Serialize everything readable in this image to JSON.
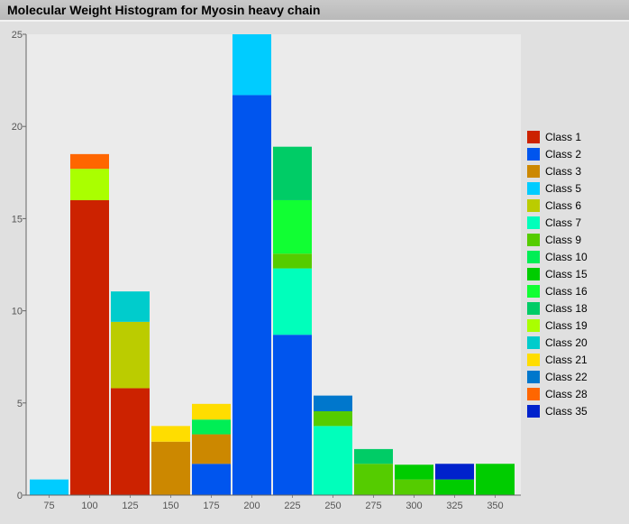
{
  "title": "Molecular Weight Histogram for Myosin heavy chain",
  "chart_data": {
    "type": "bar",
    "stacked": true,
    "categories": [
      "75",
      "100",
      "125",
      "150",
      "175",
      "200",
      "225",
      "250",
      "275",
      "300",
      "325",
      "350"
    ],
    "ylim": [
      0,
      25
    ],
    "yticks": [
      "0",
      "5",
      "10",
      "15",
      "20",
      "25"
    ],
    "grid": false,
    "legend_position": "right",
    "series": [
      {
        "name": "Class 1",
        "color": "#cc2200",
        "values": [
          0,
          16,
          5.8,
          0,
          0,
          0,
          0,
          0,
          0,
          0,
          0,
          0
        ]
      },
      {
        "name": "Class 2",
        "color": "#0055ee",
        "values": [
          0,
          0,
          0,
          0,
          1.7,
          21.7,
          8.7,
          0,
          0,
          0,
          0,
          0
        ]
      },
      {
        "name": "Class 3",
        "color": "#cc8800",
        "values": [
          0,
          0,
          0,
          2.9,
          1.6,
          0,
          0,
          0,
          0,
          0,
          0,
          0
        ]
      },
      {
        "name": "Class 5",
        "color": "#00ccff",
        "values": [
          0.85,
          0,
          0,
          0,
          0,
          3.3,
          0,
          0,
          0,
          0,
          0,
          0
        ]
      },
      {
        "name": "Class 6",
        "color": "#bbcc00",
        "values": [
          0,
          0,
          3.6,
          0,
          0,
          0,
          0,
          0,
          0,
          0,
          0,
          0
        ]
      },
      {
        "name": "Class 7",
        "color": "#00ffbb",
        "values": [
          0,
          0,
          0,
          0,
          0,
          0,
          3.6,
          3.75,
          0,
          0,
          0,
          0
        ]
      },
      {
        "name": "Class 9",
        "color": "#55cc00",
        "values": [
          0,
          0,
          0,
          0,
          0,
          0,
          0.8,
          0.8,
          1.7,
          0.85,
          0,
          0
        ]
      },
      {
        "name": "Class 10",
        "color": "#00ee55",
        "values": [
          0,
          0,
          0,
          0,
          0.8,
          0,
          0,
          0,
          0,
          0,
          0,
          0
        ]
      },
      {
        "name": "Class 15",
        "color": "#00cc00",
        "values": [
          0,
          0,
          0,
          0,
          0,
          0,
          0,
          0,
          0,
          0.8,
          0.85,
          1.7
        ]
      },
      {
        "name": "Class 16",
        "color": "#11ff33",
        "values": [
          0,
          0,
          0,
          0,
          0,
          0,
          2.9,
          0,
          0,
          0,
          0,
          0
        ]
      },
      {
        "name": "Class 18",
        "color": "#00cc66",
        "values": [
          0,
          0,
          0,
          0,
          0,
          0,
          2.9,
          0,
          0.8,
          0,
          0,
          0
        ]
      },
      {
        "name": "Class 19",
        "color": "#aaff00",
        "values": [
          0,
          1.7,
          0,
          0,
          0,
          0,
          0,
          0,
          0,
          0,
          0,
          0
        ]
      },
      {
        "name": "Class 20",
        "color": "#00cccc",
        "values": [
          0,
          0,
          1.65,
          0,
          0,
          0,
          0,
          0,
          0,
          0,
          0,
          0
        ]
      },
      {
        "name": "Class 21",
        "color": "#ffdd00",
        "values": [
          0,
          0,
          0,
          0.85,
          0.85,
          0,
          0,
          0,
          0,
          0,
          0,
          0
        ]
      },
      {
        "name": "Class 22",
        "color": "#0077cc",
        "values": [
          0,
          0,
          0,
          0,
          0,
          0,
          0,
          0.85,
          0,
          0,
          0,
          0
        ]
      },
      {
        "name": "Class 28",
        "color": "#ff6600",
        "values": [
          0,
          0.8,
          0,
          0,
          0,
          0,
          0,
          0,
          0,
          0,
          0,
          0
        ]
      },
      {
        "name": "Class 35",
        "color": "#0022cc",
        "values": [
          0,
          0,
          0,
          0,
          0,
          0,
          0,
          0,
          0,
          0,
          0.85,
          0
        ]
      }
    ],
    "stack_order": [
      [
        "Class 5"
      ],
      [
        "Class 1",
        "Class 19",
        "Class 28"
      ],
      [
        "Class 1",
        "Class 6",
        "Class 20"
      ],
      [
        "Class 3",
        "Class 21"
      ],
      [
        "Class 2",
        "Class 3",
        "Class 10",
        "Class 21"
      ],
      [
        "Class 2",
        "Class 5"
      ],
      [
        "Class 2",
        "Class 7",
        "Class 9",
        "Class 16",
        "Class 18"
      ],
      [
        "Class 7",
        "Class 9",
        "Class 22"
      ],
      [
        "Class 9",
        "Class 18"
      ],
      [
        "Class 9",
        "Class 15"
      ],
      [
        "Class 15",
        "Class 35"
      ],
      [
        "Class 15"
      ]
    ]
  }
}
